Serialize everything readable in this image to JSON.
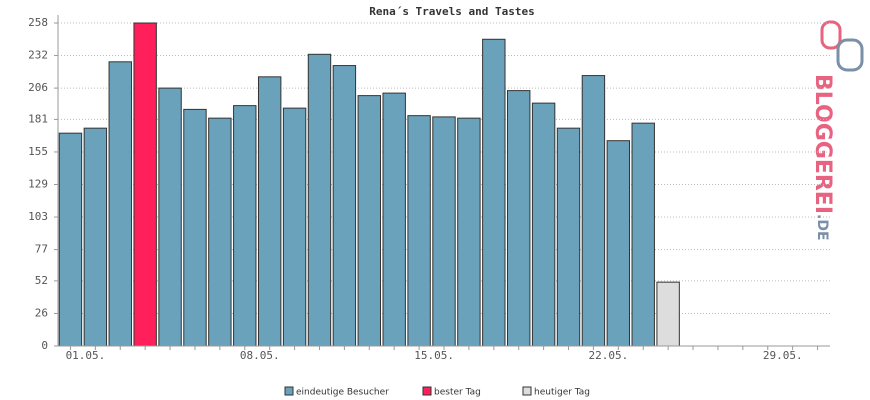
{
  "chart_data": {
    "type": "bar",
    "title": "Rena´s Travels and Tastes",
    "categories": [
      "01.05.",
      null,
      null,
      null,
      null,
      null,
      null,
      "08.05.",
      null,
      null,
      null,
      null,
      null,
      null,
      "15.05.",
      null,
      null,
      null,
      null,
      null,
      null,
      "22.05.",
      null,
      null,
      null,
      null,
      null,
      null,
      "29.05.",
      null,
      null
    ],
    "series": [
      {
        "name": "eindeutige Besucher",
        "color": "#6ba2bb",
        "values": [
          170,
          174,
          227,
          null,
          206,
          189,
          182,
          192,
          215,
          190,
          233,
          224,
          200,
          202,
          184,
          183,
          182,
          245,
          204,
          194,
          174,
          216,
          164,
          178,
          null,
          null,
          null,
          null,
          null,
          null,
          null
        ]
      },
      {
        "name": "bester Tag",
        "color": "#ff1f5a",
        "values": [
          null,
          null,
          null,
          258,
          null,
          null,
          null,
          null,
          null,
          null,
          null,
          null,
          null,
          null,
          null,
          null,
          null,
          null,
          null,
          null,
          null,
          null,
          null,
          null,
          null,
          null,
          null,
          null,
          null,
          null,
          null
        ]
      },
      {
        "name": "heutiger Tag",
        "color": "#dddddd",
        "values": [
          null,
          null,
          null,
          null,
          null,
          null,
          null,
          null,
          null,
          null,
          null,
          null,
          null,
          null,
          null,
          null,
          null,
          null,
          null,
          null,
          null,
          null,
          null,
          null,
          51,
          null,
          null,
          null,
          null,
          null,
          null
        ]
      }
    ],
    "ylim": [
      0,
      258
    ],
    "yticks": [
      0,
      26,
      52,
      77,
      103,
      129,
      155,
      181,
      206,
      232,
      258
    ],
    "grid": true,
    "logo": "BLOGGEREI",
    "logo_suffix": ".DE"
  }
}
